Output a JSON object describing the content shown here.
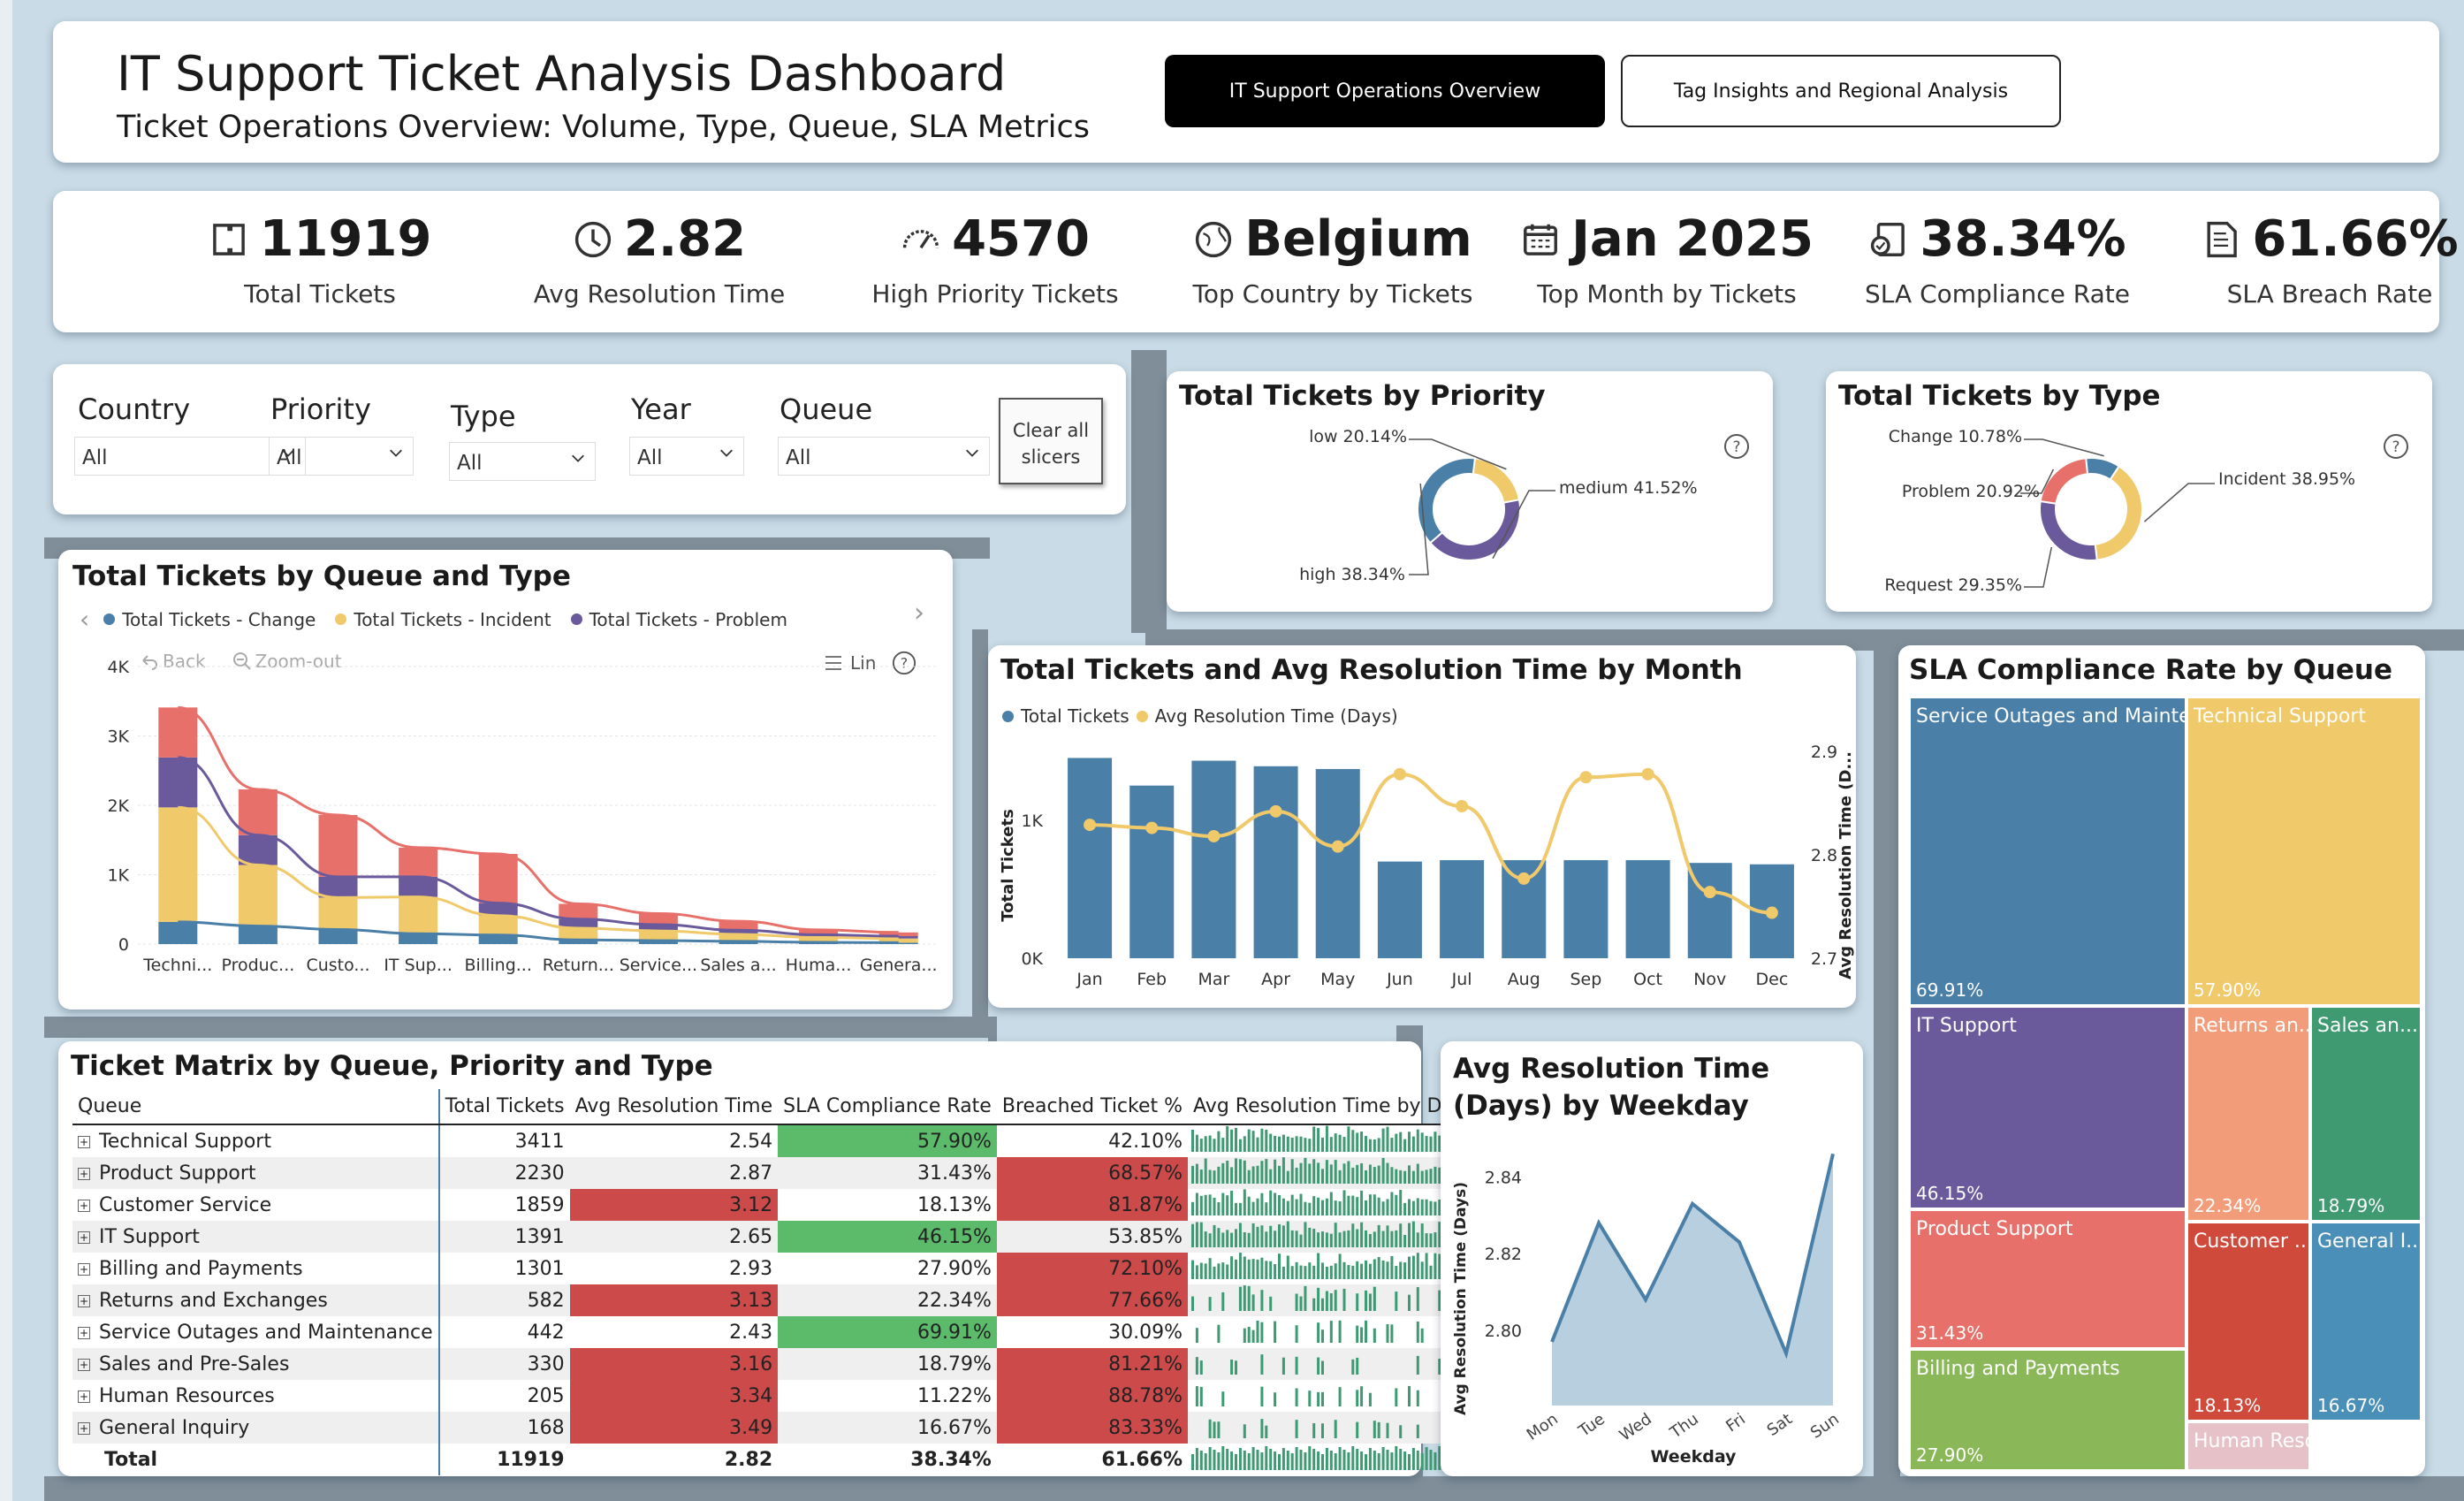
{
  "header": {
    "title": "IT Support Ticket Analysis Dashboard",
    "subtitle": "Ticket Operations Overview: Volume, Type, Queue, SLA Metrics",
    "nav_active": "IT Support Operations Overview",
    "nav_other": "Tag Insights and Regional Analysis"
  },
  "kpis": [
    {
      "value": "11919",
      "label": "Total Tickets",
      "icon": "ticket-icon"
    },
    {
      "value": "2.82",
      "label": "Avg Resolution Time",
      "icon": "clock-icon"
    },
    {
      "value": "4570",
      "label": "High Priority Tickets",
      "icon": "gauge-icon"
    },
    {
      "value": "Belgium",
      "label": "Top Country by Tickets",
      "icon": "globe-icon"
    },
    {
      "value": "Jan 2025",
      "label": "Top Month by Tickets",
      "icon": "calendar-icon"
    },
    {
      "value": "38.34%",
      "label": "SLA Compliance Rate",
      "icon": "checklist-icon"
    },
    {
      "value": "61.66%",
      "label": "SLA Breach Rate",
      "icon": "document-icon"
    }
  ],
  "slicers": [
    {
      "label": "Country",
      "value": "All"
    },
    {
      "label": "Priority",
      "value": "All"
    },
    {
      "label": "Type",
      "value": "All"
    },
    {
      "label": "Year",
      "value": "All"
    },
    {
      "label": "Queue",
      "value": "All"
    }
  ],
  "clear_slicers": "Clear all slicers",
  "colors": {
    "blue": "#4a7fa8",
    "yellow": "#f0c96a",
    "red": "#e8706a",
    "purple": "#6a5a9c",
    "green": "#5cbb6a",
    "breach": "#cc4a4a"
  },
  "priority_chart": {
    "title": "Total Tickets by Priority",
    "labels": [
      "low 20.14%",
      "medium 41.52%",
      "high 38.34%"
    ],
    "help": "?"
  },
  "type_chart": {
    "title": "Total Tickets by Type",
    "labels": [
      "Change 10.78%",
      "Incident 38.95%",
      "Problem 20.92%",
      "Request 29.35%"
    ],
    "help": "?"
  },
  "queue_type_chart": {
    "title": "Total Tickets by Queue and Type",
    "legend": [
      "Total Tickets - Change",
      "Total Tickets - Incident",
      "Total Tickets - Problem"
    ],
    "toolbar": {
      "back": "Back",
      "zoom": "Zoom-out",
      "lin": "Lin",
      "help": "?"
    },
    "nav_prev": "‹",
    "nav_next": "›"
  },
  "month_chart": {
    "title": "Total Tickets and Avg Resolution Time by Month",
    "legend": [
      "Total Tickets",
      "Avg Resolution Time (Days)"
    ],
    "ylabel": "Total Tickets",
    "y2label": "Avg Resolution Time (D...",
    "yticks": [
      "1K",
      "0K"
    ],
    "y2ticks": [
      "2.9",
      "2.8",
      "2.7"
    ]
  },
  "sla_queue": {
    "title": "SLA Compliance Rate by Queue",
    "tiles": [
      {
        "name": "Service Outages and Mainte...",
        "pct": "69.91%",
        "color": "#4a7fa8"
      },
      {
        "name": "Technical Support",
        "pct": "57.90%",
        "color": "#f0c96a"
      },
      {
        "name": "IT Support",
        "pct": "46.15%",
        "color": "#6a5a9c"
      },
      {
        "name": "Returns an...",
        "pct": "22.34%",
        "color": "#f29c7a"
      },
      {
        "name": "Sales an...",
        "pct": "18.79%",
        "color": "#3f9a72"
      },
      {
        "name": "Product Support",
        "pct": "31.43%",
        "color": "#e8706a"
      },
      {
        "name": "Customer ...",
        "pct": "18.13%",
        "color": "#cf4a3a"
      },
      {
        "name": "General I...",
        "pct": "16.67%",
        "color": "#4a8fb8"
      },
      {
        "name": "Billing and Payments",
        "pct": "27.90%",
        "color": "#8ab858"
      },
      {
        "name": "Human Resources",
        "pct": "",
        "color": "#e6c2c8"
      }
    ]
  },
  "matrix": {
    "title": "Ticket Matrix by Queue, Priority and Type",
    "headers": [
      "Queue",
      "Total Tickets",
      "Avg Resolution Time",
      "SLA Compliance Rate",
      "Breached Ticket %",
      "Avg Resolution Time by Date"
    ],
    "rows": [
      {
        "q": "Technical Support",
        "t": "3411",
        "a": "2.54",
        "s": "57.90%",
        "b": "42.10%",
        "ah": false,
        "sh": true,
        "bh": false
      },
      {
        "q": "Product Support",
        "t": "2230",
        "a": "2.87",
        "s": "31.43%",
        "b": "68.57%",
        "ah": false,
        "sh": false,
        "bh": true
      },
      {
        "q": "Customer Service",
        "t": "1859",
        "a": "3.12",
        "s": "18.13%",
        "b": "81.87%",
        "ah": true,
        "sh": false,
        "bh": true
      },
      {
        "q": "IT Support",
        "t": "1391",
        "a": "2.65",
        "s": "46.15%",
        "b": "53.85%",
        "ah": false,
        "sh": true,
        "bh": false
      },
      {
        "q": "Billing and Payments",
        "t": "1301",
        "a": "2.93",
        "s": "27.90%",
        "b": "72.10%",
        "ah": false,
        "sh": false,
        "bh": true
      },
      {
        "q": "Returns and Exchanges",
        "t": "582",
        "a": "3.13",
        "s": "22.34%",
        "b": "77.66%",
        "ah": true,
        "sh": false,
        "bh": true
      },
      {
        "q": "Service Outages and Maintenance",
        "t": "442",
        "a": "2.43",
        "s": "69.91%",
        "b": "30.09%",
        "ah": false,
        "sh": true,
        "bh": false
      },
      {
        "q": "Sales and Pre-Sales",
        "t": "330",
        "a": "3.16",
        "s": "18.79%",
        "b": "81.21%",
        "ah": true,
        "sh": false,
        "bh": true
      },
      {
        "q": "Human Resources",
        "t": "205",
        "a": "3.34",
        "s": "11.22%",
        "b": "88.78%",
        "ah": true,
        "sh": false,
        "bh": true
      },
      {
        "q": "General Inquiry",
        "t": "168",
        "a": "3.49",
        "s": "16.67%",
        "b": "83.33%",
        "ah": true,
        "sh": false,
        "bh": true
      }
    ],
    "total": {
      "q": "Total",
      "t": "11919",
      "a": "2.82",
      "s": "38.34%",
      "b": "61.66%"
    }
  },
  "weekday_chart": {
    "title": "Avg Resolution Time (Days) by Weekday",
    "ylabel": "Avg Resolution Time (Days)",
    "xlabel": "Weekday",
    "yticks": [
      "2.84",
      "2.82",
      "2.80"
    ]
  },
  "chart_data": [
    {
      "type": "bar",
      "title": "Total Tickets by Queue and Type",
      "categories": [
        "Techni...",
        "Produc...",
        "Custo...",
        "IT Sup...",
        "Billing...",
        "Return...",
        "Service...",
        "Sales a...",
        "Huma...",
        "Genera..."
      ],
      "series": [
        {
          "name": "Total Tickets - Change",
          "values": [
            320,
            260,
            210,
            150,
            130,
            60,
            50,
            40,
            25,
            20
          ]
        },
        {
          "name": "Total Tickets - Incident",
          "values": [
            1650,
            880,
            460,
            530,
            280,
            170,
            140,
            100,
            70,
            60
          ]
        },
        {
          "name": "Total Tickets - Problem",
          "values": [
            720,
            430,
            300,
            290,
            180,
            130,
            90,
            60,
            40,
            35
          ]
        },
        {
          "name": "Request",
          "values": [
            720,
            660,
            890,
            420,
            710,
            220,
            160,
            130,
            70,
            53
          ]
        }
      ],
      "yticks": [
        "0",
        "1K",
        "2K",
        "3K",
        "4K"
      ],
      "ylim": [
        0,
        4000
      ]
    },
    {
      "type": "bar+line",
      "title": "Total Tickets and Avg Resolution Time by Month",
      "categories": [
        "Jan",
        "Feb",
        "Mar",
        "Apr",
        "May",
        "Jun",
        "Jul",
        "Aug",
        "Sep",
        "Oct",
        "Nov",
        "Dec"
      ],
      "series": [
        {
          "name": "Total Tickets",
          "values": [
            1450,
            1250,
            1430,
            1390,
            1370,
            700,
            710,
            710,
            710,
            710,
            690,
            680
          ]
        },
        {
          "name": "Avg Resolution Time (Days)",
          "values": [
            2.829,
            2.826,
            2.818,
            2.842,
            2.808,
            2.878,
            2.847,
            2.777,
            2.875,
            2.878,
            2.764,
            2.744
          ]
        }
      ],
      "ylim": [
        0,
        1600
      ],
      "y2lim": [
        2.7,
        2.9
      ]
    },
    {
      "type": "area",
      "title": "Avg Resolution Time (Days) by Weekday",
      "categories": [
        "Mon",
        "Tue",
        "Wed",
        "Thu",
        "Fri",
        "Sat",
        "Sun"
      ],
      "values": [
        2.797,
        2.828,
        2.808,
        2.833,
        2.823,
        2.794,
        2.846
      ],
      "ylim": [
        2.785,
        2.85
      ]
    },
    {
      "type": "pie",
      "title": "Total Tickets by Priority",
      "categories": [
        "low",
        "medium",
        "high"
      ],
      "values": [
        20.14,
        41.52,
        38.34
      ]
    },
    {
      "type": "pie",
      "title": "Total Tickets by Type",
      "categories": [
        "Change",
        "Incident",
        "Problem",
        "Request"
      ],
      "values": [
        10.78,
        38.95,
        20.92,
        29.35
      ]
    }
  ]
}
